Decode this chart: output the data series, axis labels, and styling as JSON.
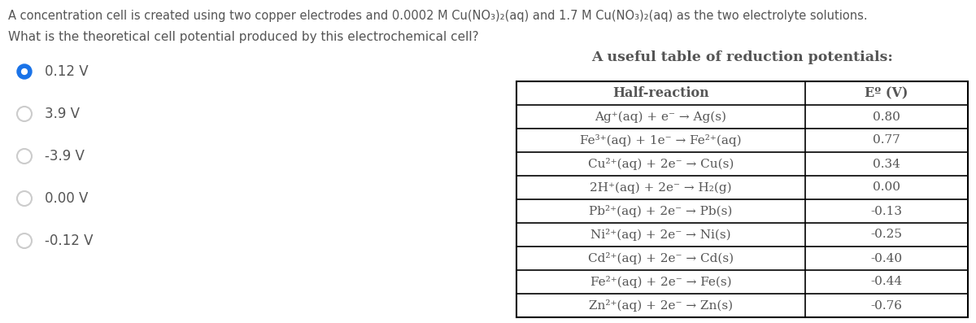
{
  "background_color": "#ffffff",
  "title_text": "A concentration cell is created using two copper electrodes and 0.0002 M Cu(NO₃)₂(aq) and 1.7 M Cu(NO₃)₂(aq) as the two electrolyte solutions.",
  "question_text": "What is the theoretical cell potential produced by this electrochemical cell?",
  "choices": [
    {
      "label": "0.12 V",
      "selected": true
    },
    {
      "label": "3.9 V",
      "selected": false
    },
    {
      "label": "-3.9 V",
      "selected": false
    },
    {
      "label": "0.00 V",
      "selected": false
    },
    {
      "label": "-0.12 V",
      "selected": false
    }
  ],
  "table_title": "A useful table of reduction potentials:",
  "table_headers": [
    "Half-reaction",
    "Eº (V)"
  ],
  "table_rows": [
    [
      "Ag⁺(aq) + e⁻ → Ag(s)",
      "0.80"
    ],
    [
      "Fe³⁺(aq) + 1e⁻ → Fe²⁺(aq)",
      "0.77"
    ],
    [
      "Cu²⁺(aq) + 2e⁻ → Cu(s)",
      "0.34"
    ],
    [
      "2H⁺(aq) + 2e⁻ → H₂(g)",
      "0.00"
    ],
    [
      "Pb²⁺(aq) + 2e⁻ → Pb(s)",
      "-0.13"
    ],
    [
      "Ni²⁺(aq) + 2e⁻ → Ni(s)",
      "-0.25"
    ],
    [
      "Cd²⁺(aq) + 2e⁻ → Cd(s)",
      "-0.40"
    ],
    [
      "Fe²⁺(aq) + 2e⁻ → Fe(s)",
      "-0.44"
    ],
    [
      "Zn²⁺(aq) + 2e⁻ → Zn(s)",
      "-0.76"
    ]
  ],
  "radio_selected_color": "#1a73e8",
  "radio_unselected_color": "#cccccc",
  "text_color": "#555555",
  "font_size_title": 10.5,
  "font_size_question": 11.0,
  "font_size_choices": 12.0,
  "font_size_table_data": 11.0,
  "font_size_table_header": 11.5,
  "font_size_table_title": 12.5,
  "fig_width": 12.0,
  "fig_height": 3.97,
  "dpi": 100
}
